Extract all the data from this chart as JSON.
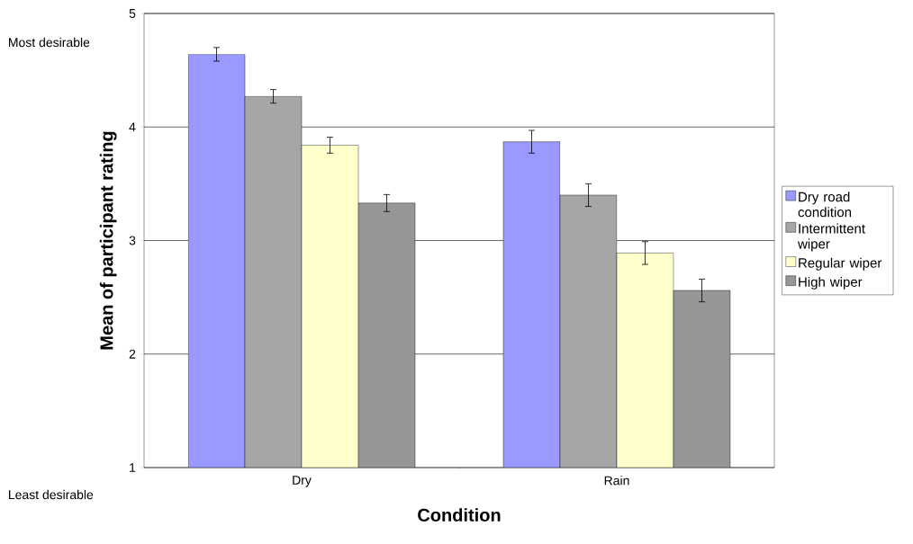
{
  "chart_data": {
    "type": "bar",
    "xlabel": "Condition",
    "ylabel": "Mean of participant rating",
    "categories": [
      "Dry",
      "Rain"
    ],
    "series": [
      {
        "name": "Dry road condition",
        "color": "#9999ff",
        "values": [
          4.64,
          3.87
        ],
        "errors": [
          0.06,
          0.1
        ]
      },
      {
        "name": "Intermittent wiper",
        "color": "#a6a6a6",
        "values": [
          4.27,
          3.4
        ],
        "errors": [
          0.06,
          0.1
        ]
      },
      {
        "name": "Regular wiper",
        "color": "#ffffcc",
        "values": [
          3.84,
          2.89
        ],
        "errors": [
          0.07,
          0.1
        ]
      },
      {
        "name": "High wiper",
        "color": "#969696",
        "values": [
          3.33,
          2.56
        ],
        "errors": [
          0.075,
          0.1
        ]
      }
    ],
    "ylim": [
      1,
      5
    ],
    "yticks": [
      1,
      2,
      3,
      4,
      5
    ],
    "grid": "y",
    "legend": "right",
    "annotations": [
      "Most desirable",
      "Least desirable"
    ]
  }
}
